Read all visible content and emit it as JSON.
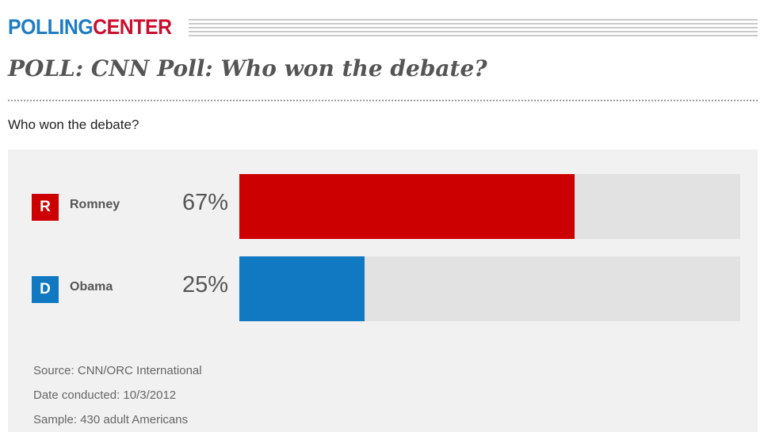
{
  "brand": {
    "part1": "POLLING",
    "part2": "CENTER"
  },
  "title": "POLL: CNN Poll: Who won the debate?",
  "chart_data": {
    "type": "bar",
    "orientation": "horizontal",
    "question": "Who won the debate?",
    "xlim": [
      0,
      100
    ],
    "categories": [
      "Romney",
      "Obama"
    ],
    "values": [
      67,
      25
    ],
    "labels": [
      "67%",
      "25%"
    ],
    "party": [
      "R",
      "D"
    ],
    "colors": [
      "#cc0000",
      "#1079c2"
    ],
    "track_color": "#e2e2e2"
  },
  "footer": {
    "source": "Source: CNN/ORC International",
    "date": "Date conducted: 10/3/2012",
    "sample": "Sample: 430 adult Americans"
  }
}
